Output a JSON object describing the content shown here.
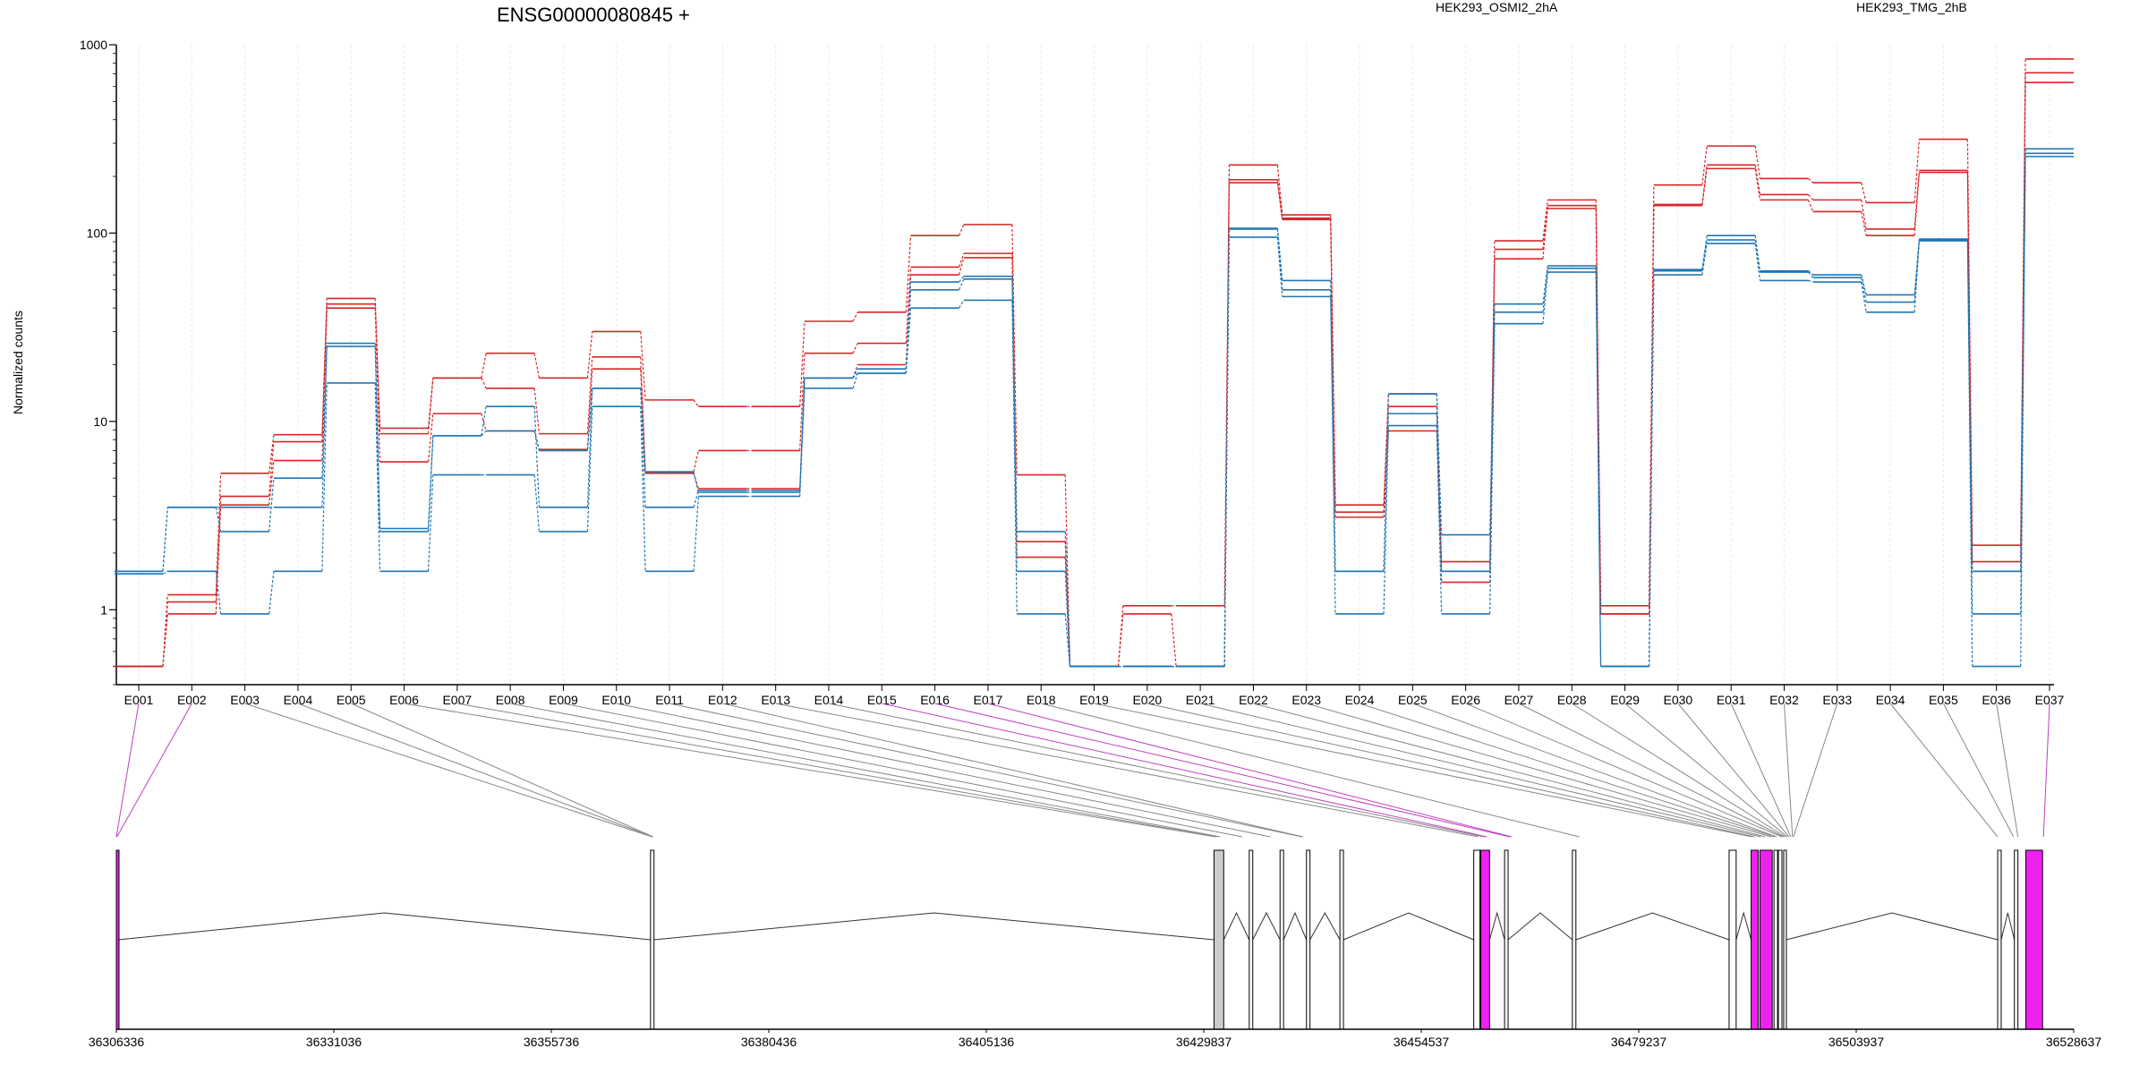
{
  "chart_data": {
    "type": "line",
    "title": "ENSG00000080845 +",
    "ylabel": "Normalized counts",
    "xlabel": "",
    "yscale": "log",
    "ylim": [
      0.4,
      1000
    ],
    "yticks": [
      "1",
      "10",
      "100",
      "1000"
    ],
    "categories": [
      "E001",
      "E002",
      "E003",
      "E004",
      "E005",
      "E006",
      "E007",
      "E008",
      "E009",
      "E010",
      "E011",
      "E012",
      "E013",
      "E014",
      "E015",
      "E016",
      "E017",
      "E018",
      "E019",
      "E020",
      "E021",
      "E022",
      "E023",
      "E024",
      "E025",
      "E026",
      "E027",
      "E028",
      "E029",
      "E030",
      "E031",
      "E032",
      "E033",
      "E034",
      "E035",
      "E036",
      "E037"
    ],
    "legend": [
      {
        "name": "HEK293_OSMI2_2hA",
        "color": "#d62728"
      },
      {
        "name": "HEK293_TMG_2hB",
        "color": "#1f77b4"
      }
    ],
    "series": [
      {
        "group": "red",
        "values": [
          0.5,
          1.2,
          5.3,
          8.5,
          45,
          9.2,
          17,
          23,
          17,
          30,
          13,
          12,
          12,
          34,
          38,
          97,
          111,
          5.2,
          0.5,
          1.05,
          1.05,
          230,
          125,
          3.6,
          14,
          1.8,
          91,
          150,
          1.05,
          180,
          290,
          195,
          185,
          145,
          315,
          2.2,
          840
        ]
      },
      {
        "group": "red",
        "values": [
          0.5,
          1.1,
          4.0,
          7.8,
          42,
          8.6,
          17,
          15,
          8.6,
          22,
          5.4,
          7.0,
          7.0,
          23,
          26,
          66,
          78,
          2.3,
          0.5,
          0.95,
          0.5,
          192,
          120,
          3.3,
          12,
          1.6,
          82,
          140,
          0.95,
          142,
          230,
          160,
          150,
          105,
          215,
          1.8,
          710
        ]
      },
      {
        "group": "red",
        "values": [
          0.5,
          0.95,
          3.6,
          6.2,
          40,
          6.1,
          11,
          8.9,
          7.1,
          19,
          5.3,
          4.4,
          4.4,
          17,
          20,
          60,
          74,
          1.9,
          0.5,
          0.5,
          0.5,
          185,
          118,
          3.1,
          8.9,
          1.4,
          73,
          135,
          0.95,
          140,
          220,
          150,
          130,
          97,
          210,
          1.6,
          630
        ]
      },
      {
        "group": "blue",
        "values": [
          1.6,
          3.5,
          2.6,
          5.0,
          26,
          2.7,
          8.4,
          12,
          3.5,
          15,
          3.5,
          4.3,
          4.3,
          17,
          19,
          55,
          59,
          2.6,
          0.5,
          0.5,
          0.5,
          106,
          56,
          1.6,
          14,
          2.5,
          42,
          67,
          0.5,
          64,
          97,
          63,
          60,
          47,
          93,
          0.5,
          280
        ]
      },
      {
        "group": "blue",
        "values": [
          1.6,
          3.5,
          3.5,
          3.5,
          25,
          2.6,
          8.4,
          8.9,
          7.0,
          15,
          5.4,
          4.2,
          4.2,
          17,
          18,
          50,
          57,
          1.6,
          0.5,
          0.5,
          0.5,
          105,
          50,
          1.6,
          11,
          1.6,
          38,
          65,
          0.5,
          63,
          92,
          62,
          58,
          43,
          92,
          1.6,
          265
        ]
      },
      {
        "group": "blue",
        "values": [
          1.55,
          1.6,
          0.95,
          1.6,
          16,
          1.6,
          5.2,
          5.2,
          2.6,
          12,
          1.6,
          4.0,
          4.0,
          15,
          18,
          40,
          44,
          0.95,
          0.5,
          0.5,
          0.5,
          95,
          46,
          0.95,
          9.5,
          0.95,
          33,
          62,
          0.5,
          60,
          88,
          56,
          55,
          38,
          91,
          0.95,
          255
        ]
      }
    ],
    "genome_axis": {
      "tick_labels": [
        "36306336",
        "36331036",
        "36355736",
        "36380436",
        "36405136",
        "36429837",
        "36454537",
        "36479237",
        "36503937",
        "36528637"
      ],
      "range": [
        36306336,
        36528637
      ]
    },
    "exon_genomic_positions": [
      36306336,
      36306400,
      36367200,
      36367250,
      36367300,
      36431200,
      36431300,
      36431700,
      36434200,
      36437400,
      36441000,
      36441100,
      36461000,
      36461700,
      36462000,
      36464600,
      36464800,
      36472500,
      36492100,
      36492400,
      36493100,
      36493600,
      36494300,
      36494700,
      36494900,
      36495500,
      36495700,
      36495900,
      36496100,
      36496300,
      36496500,
      36496700,
      36496800,
      36520000,
      36521800,
      36522300,
      36525200
    ],
    "highlighted_exons": [
      "E001",
      "E002",
      "E015",
      "E016",
      "E017",
      "E037"
    ],
    "exon_blocks": [
      {
        "start": 36306336,
        "end": 36306560,
        "fill": "#ee22ee"
      },
      {
        "start": 36367000,
        "end": 36367400,
        "fill": "#ffffff"
      },
      {
        "start": 36431000,
        "end": 36432100,
        "fill": "#cccccc"
      },
      {
        "start": 36435000,
        "end": 36435400,
        "fill": "#ffffff"
      },
      {
        "start": 36438500,
        "end": 36438900,
        "fill": "#ffffff"
      },
      {
        "start": 36441500,
        "end": 36441900,
        "fill": "#ffffff"
      },
      {
        "start": 36445300,
        "end": 36445700,
        "fill": "#ffffff"
      },
      {
        "start": 36460500,
        "end": 36461200,
        "fill": "#ffffff"
      },
      {
        "start": 36461300,
        "end": 36462300,
        "fill": "#ee22ee"
      },
      {
        "start": 36464000,
        "end": 36464400,
        "fill": "#ffffff"
      },
      {
        "start": 36471700,
        "end": 36472100,
        "fill": "#ffffff"
      },
      {
        "start": 36489500,
        "end": 36490300,
        "fill": "#ffffff"
      },
      {
        "start": 36492000,
        "end": 36492800,
        "fill": "#ee22ee"
      },
      {
        "start": 36493000,
        "end": 36494400,
        "fill": "#ee22ee"
      },
      {
        "start": 36494600,
        "end": 36495000,
        "fill": "#ffffff"
      },
      {
        "start": 36495100,
        "end": 36495500,
        "fill": "#ffffff"
      },
      {
        "start": 36495700,
        "end": 36496000,
        "fill": "#ffffff"
      },
      {
        "start": 36520000,
        "end": 36520400,
        "fill": "#ffffff"
      },
      {
        "start": 36521900,
        "end": 36522300,
        "fill": "#ffffff"
      },
      {
        "start": 36523200,
        "end": 36525100,
        "fill": "#ee22ee"
      }
    ],
    "introns": [
      [
        36306560,
        36367000
      ],
      [
        36367400,
        36431000
      ],
      [
        36432100,
        36435000
      ],
      [
        36435400,
        36438500
      ],
      [
        36438900,
        36441500
      ],
      [
        36441900,
        36445300
      ],
      [
        36445700,
        36460500
      ],
      [
        36462300,
        36464000
      ],
      [
        36464400,
        36471700
      ],
      [
        36472100,
        36489500
      ],
      [
        36490300,
        36492000
      ],
      [
        36496000,
        36520000
      ],
      [
        36520400,
        36521900
      ]
    ]
  }
}
